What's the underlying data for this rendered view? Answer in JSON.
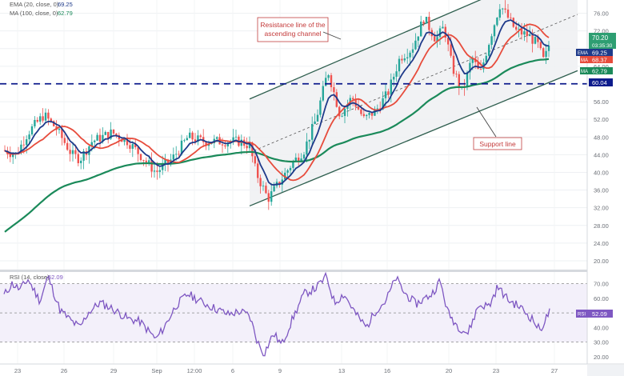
{
  "legend": {
    "ema_text": "EMA (20, close, 0)",
    "ema_value": "69.25",
    "ma_text": "MA (100, close, 0)",
    "ma_value": "62.79",
    "rsi_text": "RSI (14, close)",
    "rsi_value": "52.09"
  },
  "annotations": {
    "resistance_line1": "Resistance line of the",
    "resistance_line2": "ascending channel",
    "support": "Support line"
  },
  "price_tags": {
    "last": "70.20",
    "countdown": "03:35:30",
    "ema_label": "EMA",
    "ema_value": "69.25",
    "ma50_label": "MA",
    "ma50_value": "68.37",
    "ma100_label": "MA",
    "ma100_value": "62.79",
    "level": "60.04",
    "rsi_label": "RSI",
    "rsi_value": "52.09"
  },
  "colors": {
    "candle_up": "#26a69a",
    "candle_down": "#ef5350",
    "ema": "#1e3a8a",
    "ma50": "#e74c3c",
    "ma100": "#1b8a5a",
    "rsi": "#7e57c2",
    "level_line": "#0d1b8c",
    "channel": "#2f5f4f",
    "price_tag": "#2e9e72"
  },
  "chart_data": [
    {
      "type": "candlestick",
      "title": "",
      "y_axis_ticks": [
        76,
        72,
        68,
        64,
        60,
        56,
        52,
        48,
        44,
        40,
        36,
        32,
        28,
        24,
        20
      ],
      "ylim": [
        18,
        79
      ],
      "x_tick_labels": [
        "23",
        "26",
        "29",
        "Sep",
        "12:00",
        "6",
        "9",
        "13",
        "16",
        "20",
        "23",
        "27"
      ],
      "horizontal_level": 60.04,
      "series": [
        {
          "name": "EMA (20, close, 0)",
          "last_value": 69.25
        },
        {
          "name": "MA",
          "last_value": 68.37
        },
        {
          "name": "MA (100, close, 0)",
          "last_value": 62.79
        }
      ],
      "last_price": 70.2
    },
    {
      "type": "line",
      "title": "RSI (14, close)",
      "y_axis_ticks": [
        70.0,
        60.0,
        50.0,
        40.0,
        30.0,
        20.0
      ],
      "ylim": [
        15,
        78
      ],
      "band": [
        30,
        70
      ],
      "last_value": 52.09
    }
  ]
}
